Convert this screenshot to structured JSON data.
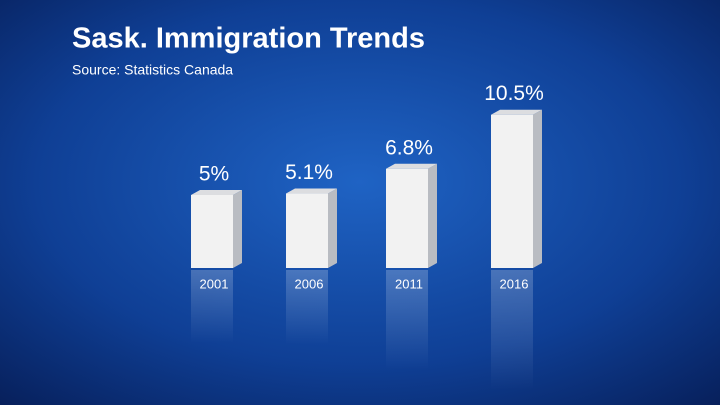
{
  "chart_data": {
    "type": "bar",
    "title": "Sask. Immigration Trends",
    "subtitle": "Source: Statistics Canada",
    "categories": [
      "2001",
      "2006",
      "2011",
      "2016"
    ],
    "values": [
      5,
      5.1,
      6.8,
      10.5
    ],
    "value_labels": [
      "5%",
      "5.1%",
      "6.8%",
      "10.5%"
    ],
    "color": "#f2f2f2"
  }
}
